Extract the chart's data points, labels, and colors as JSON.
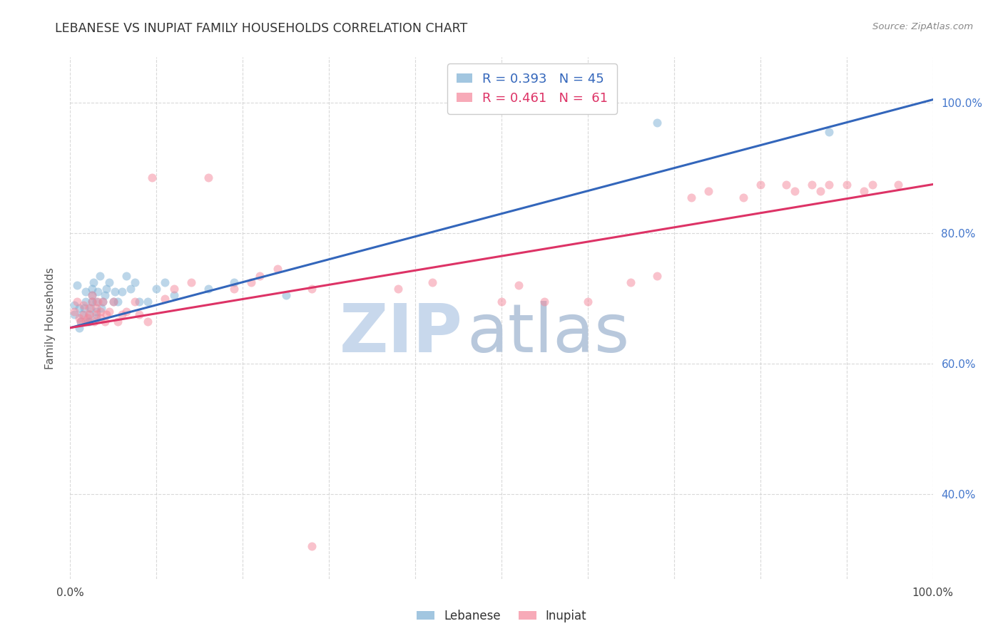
{
  "title": "LEBANESE VS INUPIAT FAMILY HOUSEHOLDS CORRELATION CHART",
  "source": "Source: ZipAtlas.com",
  "ylabel": "Family Households",
  "xlim": [
    0.0,
    1.0
  ],
  "ylim": [
    0.27,
    1.07
  ],
  "x_ticks": [
    0.0,
    0.1,
    0.2,
    0.3,
    0.4,
    0.5,
    0.6,
    0.7,
    0.8,
    0.9,
    1.0
  ],
  "y_ticks_right": [
    0.4,
    0.6,
    0.8,
    1.0
  ],
  "y_tick_labels_right": [
    "40.0%",
    "60.0%",
    "80.0%",
    "100.0%"
  ],
  "grid_color": "#d0d0d0",
  "background_color": "#ffffff",
  "lebanese_x": [
    0.005,
    0.005,
    0.008,
    0.01,
    0.01,
    0.012,
    0.014,
    0.016,
    0.018,
    0.018,
    0.02,
    0.022,
    0.022,
    0.024,
    0.025,
    0.025,
    0.025,
    0.027,
    0.03,
    0.03,
    0.03,
    0.032,
    0.034,
    0.036,
    0.038,
    0.04,
    0.042,
    0.045,
    0.05,
    0.052,
    0.055,
    0.06,
    0.065,
    0.07,
    0.075,
    0.08,
    0.09,
    0.1,
    0.11,
    0.12,
    0.16,
    0.19,
    0.25,
    0.68,
    0.88
  ],
  "lebanese_y": [
    0.675,
    0.69,
    0.72,
    0.655,
    0.685,
    0.665,
    0.675,
    0.685,
    0.695,
    0.71,
    0.665,
    0.665,
    0.675,
    0.685,
    0.695,
    0.705,
    0.715,
    0.725,
    0.67,
    0.68,
    0.695,
    0.71,
    0.735,
    0.685,
    0.695,
    0.705,
    0.715,
    0.725,
    0.695,
    0.71,
    0.695,
    0.71,
    0.735,
    0.715,
    0.725,
    0.695,
    0.695,
    0.715,
    0.725,
    0.705,
    0.715,
    0.725,
    0.705,
    0.97,
    0.955
  ],
  "inupiat_x": [
    0.005,
    0.008,
    0.01,
    0.012,
    0.015,
    0.015,
    0.018,
    0.02,
    0.022,
    0.022,
    0.025,
    0.025,
    0.028,
    0.03,
    0.03,
    0.032,
    0.035,
    0.035,
    0.038,
    0.04,
    0.042,
    0.045,
    0.05,
    0.055,
    0.06,
    0.065,
    0.075,
    0.08,
    0.09,
    0.095,
    0.11,
    0.12,
    0.14,
    0.16,
    0.19,
    0.21,
    0.22,
    0.24,
    0.28,
    0.38,
    0.42,
    0.5,
    0.52,
    0.55,
    0.6,
    0.65,
    0.68,
    0.72,
    0.74,
    0.78,
    0.8,
    0.83,
    0.84,
    0.86,
    0.87,
    0.88,
    0.9,
    0.92,
    0.93,
    0.96,
    0.28
  ],
  "inupiat_y": [
    0.68,
    0.695,
    0.67,
    0.665,
    0.675,
    0.69,
    0.665,
    0.67,
    0.675,
    0.685,
    0.695,
    0.705,
    0.665,
    0.675,
    0.685,
    0.695,
    0.67,
    0.68,
    0.695,
    0.665,
    0.675,
    0.68,
    0.695,
    0.665,
    0.675,
    0.68,
    0.695,
    0.675,
    0.665,
    0.885,
    0.7,
    0.715,
    0.725,
    0.885,
    0.715,
    0.725,
    0.735,
    0.745,
    0.32,
    0.715,
    0.725,
    0.695,
    0.72,
    0.695,
    0.695,
    0.725,
    0.735,
    0.855,
    0.865,
    0.855,
    0.875,
    0.875,
    0.865,
    0.875,
    0.865,
    0.875,
    0.875,
    0.865,
    0.875,
    0.875,
    0.715
  ],
  "lebanese_color": "#7bafd4",
  "inupiat_color": "#f4879a",
  "line_blue": "#3366bb",
  "line_pink": "#dd3366",
  "lebanese_R": 0.393,
  "lebanese_N": 45,
  "inupiat_R": 0.461,
  "inupiat_N": 61,
  "watermark_zip": "ZIP",
  "watermark_atlas": "atlas",
  "watermark_color_zip": "#c8d8ec",
  "watermark_color_atlas": "#b8c8dc",
  "marker_size": 75,
  "marker_alpha": 0.5,
  "line_width": 2.2,
  "blue_line_start_y": 0.655,
  "blue_line_end_y": 1.005,
  "pink_line_start_y": 0.655,
  "pink_line_end_y": 0.875
}
